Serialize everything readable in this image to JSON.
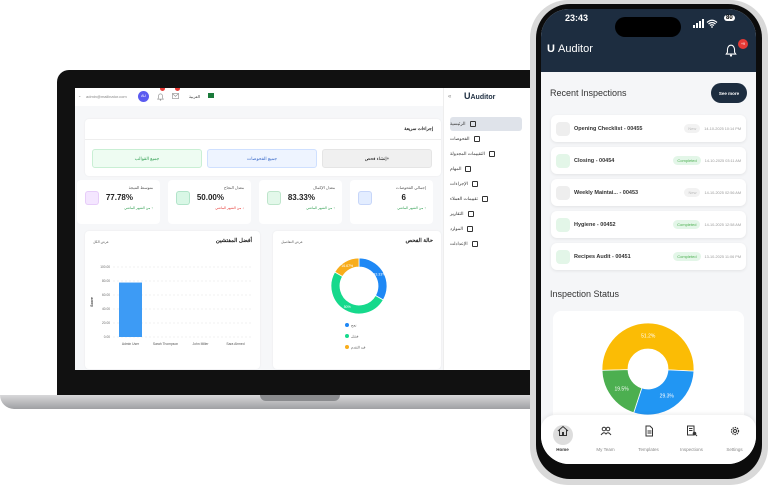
{
  "laptop": {
    "topbar": {
      "email": "admin@mailinator.com",
      "avatar": "AU",
      "language": "العربية"
    },
    "brand": "Auditor",
    "sidebar": {
      "items": [
        {
          "label": "الرئيسية",
          "active": true
        },
        {
          "label": "الفحوصات"
        },
        {
          "label": "التقييمات المجدولة"
        },
        {
          "label": "المهام"
        },
        {
          "label": "الإجراءات"
        },
        {
          "label": "تقييمات العملاء"
        },
        {
          "label": "التقارير",
          "expandable": true
        },
        {
          "label": "الموارد",
          "expandable": true
        },
        {
          "label": "الإعدادات",
          "expandable": true
        }
      ]
    },
    "quick_actions": {
      "title": "إجراءات سريعة",
      "buttons": [
        "+إنشاء فحص",
        "جميع الفحوصات",
        "جميع القوالب"
      ]
    },
    "stats": [
      {
        "label": "إجمالي الفحوصات",
        "value": "6",
        "change": "↑ من الشهر الماضي",
        "trend": "up"
      },
      {
        "label": "معدل الإكمال",
        "value": "83.33%",
        "change": "↑ من الشهر الماضي",
        "trend": "up"
      },
      {
        "label": "معدل النجاح",
        "value": "50.00%",
        "change": "↓ من الشهر الماضي",
        "trend": "down"
      },
      {
        "label": "متوسط النتيجة",
        "value": "77.78%",
        "change": "↑ من الشهر الماضي",
        "trend": "up"
      }
    ],
    "status_chart": {
      "title": "حالة الفحص",
      "link": "عرض التفاصيل"
    },
    "inspectors_chart": {
      "title": "أفضل المفتشين",
      "link": "عرض الكل"
    }
  },
  "chart_data": [
    {
      "type": "pie",
      "variant": "donut",
      "slices": [
        {
          "label": "نجح",
          "value": 33.33,
          "text": "33.33%",
          "color": "#1e88f5"
        },
        {
          "label": "فشل",
          "value": 50,
          "text": "50%",
          "color": "#16d98c"
        },
        {
          "label": "قيد التقدم",
          "value": 16.67,
          "text": "16.67%",
          "color": "#f8ad1c"
        }
      ],
      "legend": "bottom"
    },
    {
      "type": "bar",
      "categories": [
        "Admin User",
        "Sarah Thompson",
        "John Miller",
        "Sara Ahmed"
      ],
      "values": [
        77.78,
        0,
        0,
        0
      ],
      "ylabel": "Score",
      "ylim": [
        0,
        100
      ],
      "yticks": [
        "0.00",
        "20.00",
        "40.00",
        "60.00",
        "80.00",
        "100.00"
      ],
      "grid": true,
      "color": "#3d9bf5"
    },
    {
      "type": "pie",
      "variant": "donut",
      "slices": [
        {
          "text": "51.2%",
          "value": 51.2,
          "color": "#fbbc05"
        },
        {
          "text": "29.3%",
          "value": 29.3,
          "color": "#2196f3"
        },
        {
          "text": "19.5%",
          "value": 19.5,
          "color": "#4caf50"
        }
      ]
    }
  ],
  "phone": {
    "time": "23:43",
    "battery": "80",
    "brand": "Auditor",
    "bell_badge": "+9",
    "recent_title": "Recent Inspections",
    "see_more": "See more",
    "inspections": [
      {
        "name": "Opening Checklist - 00455",
        "status": "New",
        "date": "14-10-2025 10:14 PM"
      },
      {
        "name": "Closing - 00454",
        "status": "Completed",
        "date": "14-10-2025 03:11 AM"
      },
      {
        "name": "Weekly Maintai... - 00453",
        "status": "New",
        "date": "14-10-2025 02:56 AM"
      },
      {
        "name": "Hygiene - 00452",
        "status": "Completed",
        "date": "14-10-2025 12:58 AM"
      },
      {
        "name": "Recipes Audit - 00451",
        "status": "Completed",
        "date": "13-10-2025 11:06 PM"
      }
    ],
    "status_title": "Inspection Status",
    "nav": [
      {
        "label": "Home",
        "icon": "home-icon",
        "active": true
      },
      {
        "label": "My Team",
        "icon": "team-icon"
      },
      {
        "label": "Templates",
        "icon": "document-icon"
      },
      {
        "label": "Inspections",
        "icon": "inspection-search-icon"
      },
      {
        "label": "Settings",
        "icon": "gear-icon"
      }
    ]
  }
}
